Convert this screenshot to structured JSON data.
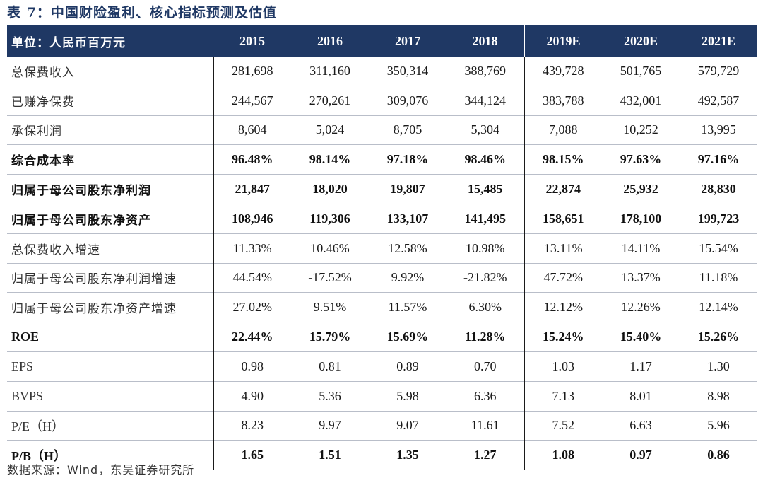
{
  "caption": "表 7：中国财险盈利、核心指标预测及估值",
  "header": {
    "unit_label": "单位：人民币百万元",
    "years": [
      "2015",
      "2016",
      "2017",
      "2018",
      "2019E",
      "2020E",
      "2021E"
    ]
  },
  "rows": [
    {
      "label": "总保费收入",
      "values": [
        "281,698",
        "311,160",
        "350,314",
        "388,769",
        "439,728",
        "501,765",
        "579,729"
      ]
    },
    {
      "label": "已赚净保费",
      "values": [
        "244,567",
        "270,261",
        "309,076",
        "344,124",
        "383,788",
        "432,001",
        "492,587"
      ]
    },
    {
      "label": "承保利润",
      "values": [
        "8,604",
        "5,024",
        "8,705",
        "5,304",
        "7,088",
        "10,252",
        "13,995"
      ]
    },
    {
      "label": "综合成本率",
      "values": [
        "96.48%",
        "98.14%",
        "97.18%",
        "98.46%",
        "98.15%",
        "97.63%",
        "97.16%"
      ]
    },
    {
      "label": "归属于母公司股东净利润",
      "values": [
        "21,847",
        "18,020",
        "19,807",
        "15,485",
        "22,874",
        "25,932",
        "28,830"
      ]
    },
    {
      "label": "归属于母公司股东净资产",
      "values": [
        "108,946",
        "119,306",
        "133,107",
        "141,495",
        "158,651",
        "178,100",
        "199,723"
      ]
    },
    {
      "label": "总保费收入增速",
      "values": [
        "11.33%",
        "10.46%",
        "12.58%",
        "10.98%",
        "13.11%",
        "14.11%",
        "15.54%"
      ]
    },
    {
      "label": "归属于母公司股东净利润增速",
      "values": [
        "44.54%",
        "-17.52%",
        "9.92%",
        "-21.82%",
        "47.72%",
        "13.37%",
        "11.18%"
      ]
    },
    {
      "label": "归属于母公司股东净资产增速",
      "values": [
        "27.02%",
        "9.51%",
        "11.57%",
        "6.30%",
        "12.12%",
        "12.26%",
        "12.14%"
      ]
    },
    {
      "label": "ROE",
      "values": [
        "22.44%",
        "15.79%",
        "15.69%",
        "11.28%",
        "15.24%",
        "15.40%",
        "15.26%"
      ]
    },
    {
      "label": "EPS",
      "values": [
        "0.98",
        "0.81",
        "0.89",
        "0.70",
        "1.03",
        "1.17",
        "1.30"
      ]
    },
    {
      "label": "BVPS",
      "values": [
        "4.90",
        "5.36",
        "5.98",
        "6.36",
        "7.13",
        "8.01",
        "8.98"
      ]
    },
    {
      "label": "P/E（H）",
      "values": [
        "8.23",
        "9.97",
        "9.07",
        "11.61",
        "7.52",
        "6.63",
        "5.96"
      ]
    },
    {
      "label": "P/B（H）",
      "values": [
        "1.65",
        "1.51",
        "1.35",
        "1.27",
        "1.08",
        "0.97",
        "0.86"
      ]
    }
  ],
  "source": "数据来源：Wind，东吴证券研究所",
  "colors": {
    "header_bg": "#1f3864",
    "caption": "#1f3864"
  }
}
